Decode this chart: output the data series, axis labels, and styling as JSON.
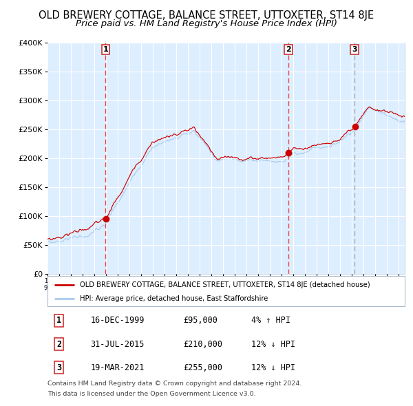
{
  "title": "OLD BREWERY COTTAGE, BALANCE STREET, UTTOXETER, ST14 8JE",
  "subtitle": "Price paid vs. HM Land Registry's House Price Index (HPI)",
  "red_label": "OLD BREWERY COTTAGE, BALANCE STREET, UTTOXETER, ST14 8JE (detached house)",
  "blue_label": "HPI: Average price, detached house, East Staffordshire",
  "footer1": "Contains HM Land Registry data © Crown copyright and database right 2024.",
  "footer2": "This data is licensed under the Open Government Licence v3.0.",
  "transactions": [
    {
      "num": 1,
      "date": "16-DEC-1999",
      "price": "£95,000",
      "hpi": "4% ↑ HPI",
      "year": 1999.96,
      "value": 95000,
      "vline_color": "#ee4444"
    },
    {
      "num": 2,
      "date": "31-JUL-2015",
      "price": "£210,000",
      "hpi": "12% ↓ HPI",
      "year": 2015.58,
      "value": 210000,
      "vline_color": "#ee4444"
    },
    {
      "num": 3,
      "date": "19-MAR-2021",
      "price": "£255,000",
      "hpi": "12% ↓ HPI",
      "year": 2021.21,
      "value": 255000,
      "vline_color": "#aaaaaa"
    }
  ],
  "ylim": [
    0,
    400000
  ],
  "xlim_start": 1995.0,
  "xlim_end": 2025.5,
  "bg_color": "#ddeeff",
  "grid_color": "#ffffff",
  "red_color": "#cc0000",
  "blue_color": "#aaccee",
  "title_fontsize": 10.5,
  "subtitle_fontsize": 9.5
}
